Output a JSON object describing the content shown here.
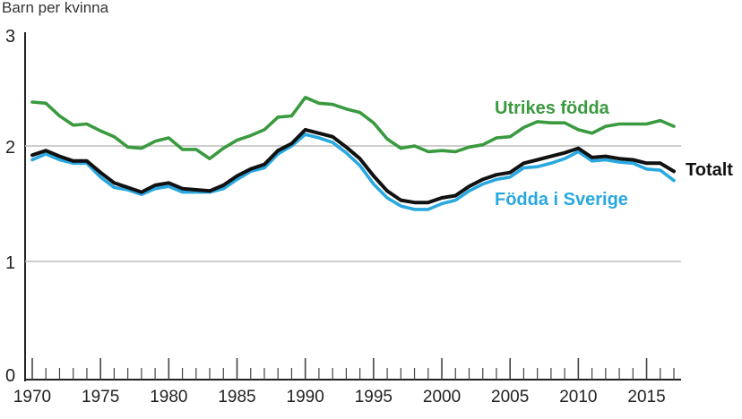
{
  "chart_data": {
    "type": "line",
    "title": "",
    "ylabel": "Barn per kvinna",
    "xlabel": "",
    "xlim": [
      1970,
      2017
    ],
    "ylim": [
      0,
      3
    ],
    "y_ticks": [
      "0",
      "1",
      "2",
      "3"
    ],
    "x_ticks": [
      "1970",
      "1975",
      "1980",
      "1985",
      "1990",
      "1995",
      "2000",
      "2005",
      "2010",
      "2015"
    ],
    "grid": "horizontal at 1, 2",
    "legend": "inline labels at line ends",
    "x": [
      1970,
      1971,
      1972,
      1973,
      1974,
      1975,
      1976,
      1977,
      1978,
      1979,
      1980,
      1981,
      1982,
      1983,
      1984,
      1985,
      1986,
      1987,
      1988,
      1989,
      1990,
      1991,
      1992,
      1993,
      1994,
      1995,
      1996,
      1997,
      1998,
      1999,
      2000,
      2001,
      2002,
      2003,
      2004,
      2005,
      2006,
      2007,
      2008,
      2009,
      2010,
      2011,
      2012,
      2013,
      2014,
      2015,
      2016,
      2017
    ],
    "series": [
      {
        "name": "Utrikes födda",
        "color": "#3a9a3f",
        "values": [
          2.38,
          2.37,
          2.26,
          2.18,
          2.19,
          2.13,
          2.08,
          1.99,
          1.98,
          2.04,
          2.07,
          1.97,
          1.97,
          1.89,
          1.98,
          2.05,
          2.09,
          2.14,
          2.25,
          2.26,
          2.42,
          2.37,
          2.36,
          2.32,
          2.29,
          2.2,
          2.06,
          1.98,
          2.0,
          1.95,
          1.96,
          1.95,
          1.99,
          2.01,
          2.07,
          2.08,
          2.16,
          2.21,
          2.2,
          2.2,
          2.14,
          2.11,
          2.17,
          2.19,
          2.19,
          2.19,
          2.22,
          2.17
        ]
      },
      {
        "name": "Totalt",
        "color": "#111111",
        "values": [
          1.92,
          1.96,
          1.91,
          1.87,
          1.87,
          1.77,
          1.68,
          1.64,
          1.6,
          1.66,
          1.68,
          1.63,
          1.62,
          1.61,
          1.66,
          1.74,
          1.8,
          1.84,
          1.96,
          2.02,
          2.14,
          2.11,
          2.08,
          1.99,
          1.89,
          1.74,
          1.61,
          1.53,
          1.51,
          1.51,
          1.55,
          1.57,
          1.65,
          1.71,
          1.75,
          1.77,
          1.85,
          1.88,
          1.91,
          1.94,
          1.98,
          1.9,
          1.91,
          1.89,
          1.88,
          1.85,
          1.85,
          1.78
        ]
      },
      {
        "name": "Födda i Sverige",
        "color": "#29a8e0",
        "values": [
          1.88,
          1.93,
          1.88,
          1.85,
          1.85,
          1.73,
          1.64,
          1.62,
          1.58,
          1.63,
          1.65,
          1.6,
          1.6,
          1.6,
          1.63,
          1.71,
          1.78,
          1.81,
          1.93,
          2.0,
          2.1,
          2.07,
          2.03,
          1.94,
          1.83,
          1.67,
          1.55,
          1.48,
          1.45,
          1.45,
          1.5,
          1.53,
          1.61,
          1.67,
          1.71,
          1.73,
          1.81,
          1.82,
          1.85,
          1.89,
          1.95,
          1.87,
          1.88,
          1.86,
          1.85,
          1.8,
          1.79,
          1.7
        ]
      }
    ]
  }
}
